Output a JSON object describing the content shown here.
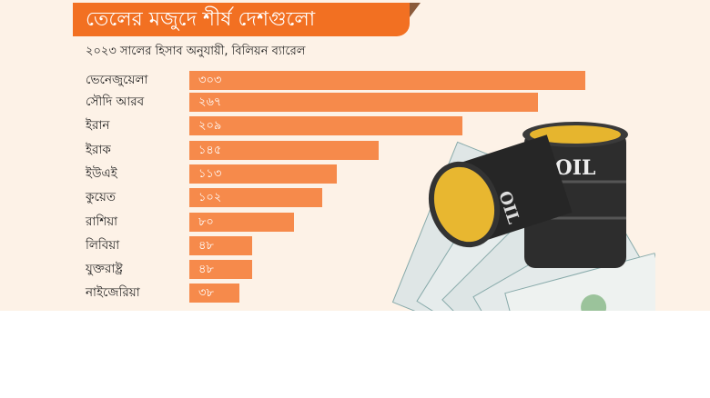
{
  "chart_data": {
    "type": "bar",
    "orientation": "horizontal",
    "title": "তেলের মজুদে শীর্ষ দেশগুলো",
    "subtitle": "২০২৩ সালের হিসাব অনুযায়ী, বিলিয়ন ব্যারেল",
    "categories": [
      "ভেনেজুয়েলা",
      "সৌদি আরব",
      "ইরান",
      "ইরাক",
      "ইউএই",
      "কুয়েত",
      "রাশিয়া",
      "লিবিয়া",
      "যুক্তরাষ্ট্র",
      "নাইজেরিয়া"
    ],
    "values": [
      303,
      267,
      209,
      145,
      113,
      102,
      80,
      48,
      48,
      38
    ],
    "value_labels": [
      "৩০৩",
      "২৬৭",
      "২০৯",
      "১৪৫",
      "১১৩",
      "১০২",
      "৮০",
      "৪৮",
      "৪৮",
      "৩৮"
    ],
    "xlim": [
      0,
      303
    ],
    "grid": false,
    "colors": {
      "bar": "#f68a4b",
      "title_banner": "#f27022",
      "background": "#fdf2e7"
    }
  },
  "illustration": {
    "barrel_text": "OIL",
    "icons": [
      "oil-barrel-icon",
      "dollar-bills-icon"
    ]
  }
}
